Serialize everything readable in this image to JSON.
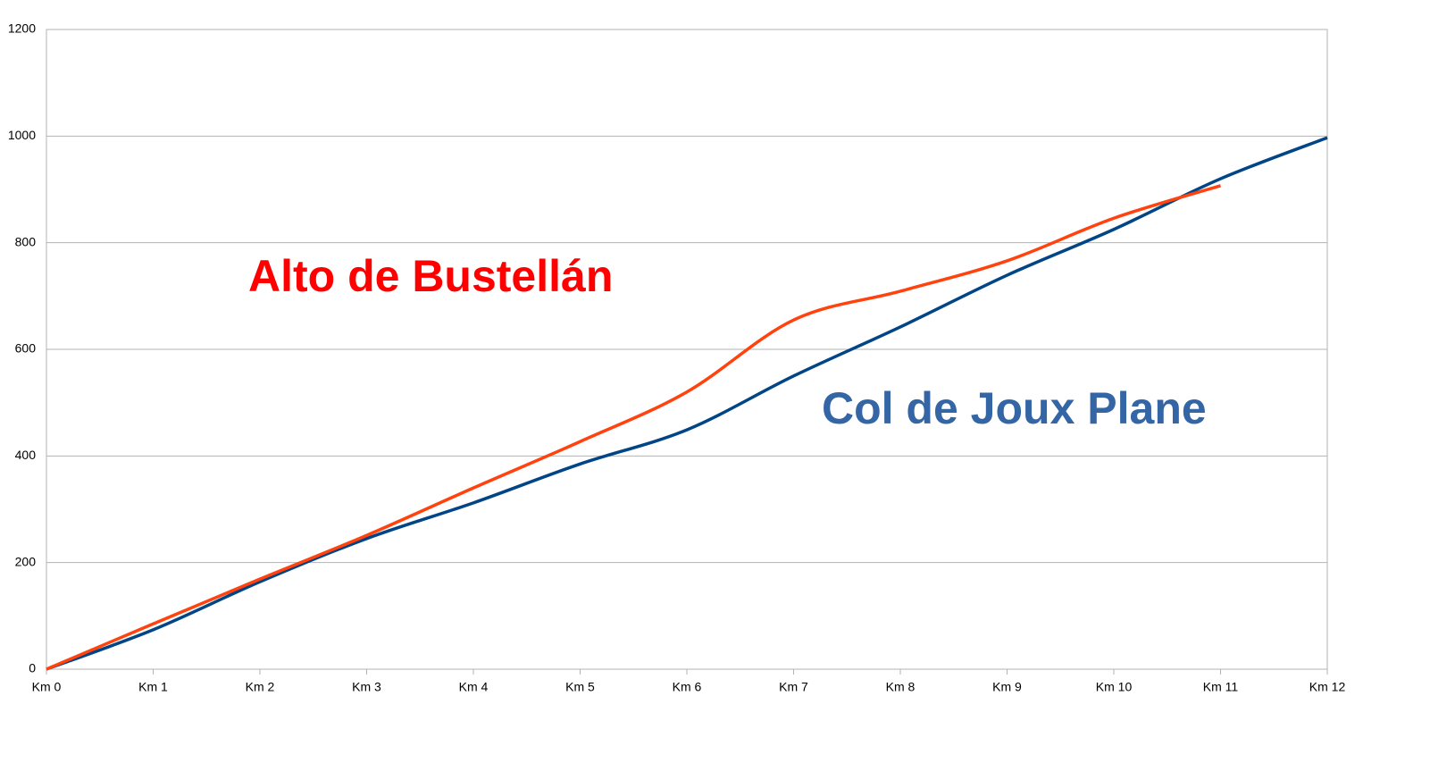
{
  "chart_data": {
    "type": "line",
    "categories": [
      "Km 0",
      "Km 1",
      "Km 2",
      "Km 3",
      "Km 4",
      "Km 5",
      "Km 6",
      "Km 7",
      "Km 8",
      "Km 9",
      "Km 10",
      "Km 11",
      "Km 12"
    ],
    "series": [
      {
        "name": "Col de Joux Plane",
        "color": "#004586",
        "label_color": "#3465a4",
        "values": [
          0,
          74,
          164,
          245,
          312,
          385,
          449,
          550,
          642,
          739,
          825,
          920,
          997
        ]
      },
      {
        "name": "Alto de Bustellán",
        "color": "#ff420e",
        "label_color": "#ff0000",
        "values": [
          0,
          85,
          169,
          251,
          340,
          427,
          520,
          655,
          709,
          766,
          846,
          907,
          null
        ]
      }
    ],
    "ylim": [
      0,
      1200
    ],
    "yticks": [
      0,
      200,
      400,
      600,
      800,
      1000,
      1200
    ],
    "grid": true,
    "smooth": true
  }
}
